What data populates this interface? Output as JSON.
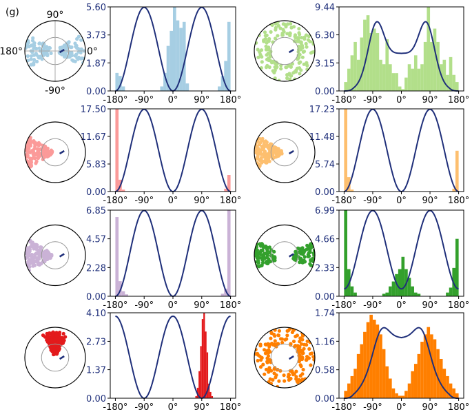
{
  "figure_label": "(g)",
  "polar_labels": {
    "top": "90°",
    "left": "180°",
    "right": "0°",
    "bottom": "-90°"
  },
  "colors": {
    "curve": "#1f2f7a",
    "axis_tick": "#1f2f7a",
    "circle_ref": "#999999"
  },
  "chart_data": [
    {
      "type": "bar",
      "panel": "row1-left",
      "color": "#a6cee3",
      "x_ticks": [
        "-180°",
        "-90°",
        "0°",
        "90°",
        "180°"
      ],
      "y_ticks": [
        "0.00",
        "1.87",
        "3.73",
        "5.60"
      ],
      "ylim": [
        0,
        5.6
      ],
      "curve": "two-peak",
      "curve_peaks_x": [
        -90,
        90
      ],
      "curve_dips_x": [
        0,
        180,
        -180
      ],
      "curve_min": 0.0,
      "hist": [
        [
          -180,
          1.2
        ],
        [
          -170,
          1.0
        ],
        [
          -160,
          0.3
        ],
        [
          -150,
          0.0
        ],
        [
          -140,
          0.0
        ],
        [
          -130,
          0.0
        ],
        [
          -120,
          0.0
        ],
        [
          -110,
          0.0
        ],
        [
          -100,
          0.0
        ],
        [
          -90,
          0.0
        ],
        [
          -80,
          0.0
        ],
        [
          -70,
          0.0
        ],
        [
          -60,
          0.0
        ],
        [
          -50,
          0.0
        ],
        [
          -40,
          0.3
        ],
        [
          -30,
          1.2
        ],
        [
          -20,
          3.0
        ],
        [
          -10,
          4.0
        ],
        [
          0,
          5.6
        ],
        [
          10,
          4.7
        ],
        [
          20,
          4.2
        ],
        [
          30,
          4.6
        ],
        [
          40,
          0.5
        ],
        [
          50,
          0.0
        ],
        [
          60,
          0.0
        ],
        [
          70,
          0.0
        ],
        [
          80,
          0.0
        ],
        [
          90,
          0.0
        ],
        [
          100,
          0.0
        ],
        [
          110,
          0.0
        ],
        [
          120,
          0.0
        ],
        [
          130,
          0.0
        ],
        [
          140,
          0.3
        ],
        [
          150,
          1.0
        ],
        [
          160,
          2.0
        ],
        [
          170,
          4.6
        ]
      ]
    },
    {
      "type": "bar",
      "panel": "row1-right",
      "color": "#b2df8a",
      "x_ticks": [
        "-180°",
        "-90°",
        "0°",
        "90°",
        "180°"
      ],
      "y_ticks": [
        "0.00",
        "3.15",
        "6.30",
        "9.44"
      ],
      "ylim": [
        0,
        9.44
      ],
      "curve": "two-peak-high-min",
      "curve_peaks_x": [
        -80,
        80
      ],
      "curve_dips_x": [
        0,
        180,
        -180
      ],
      "curve_min": 4.2,
      "hist": [
        [
          -180,
          1.0
        ],
        [
          -170,
          2.5
        ],
        [
          -160,
          4.0
        ],
        [
          -150,
          5.5
        ],
        [
          -140,
          3.5
        ],
        [
          -130,
          6.0
        ],
        [
          -120,
          8.0
        ],
        [
          -110,
          8.5
        ],
        [
          -100,
          6.5
        ],
        [
          -90,
          7.0
        ],
        [
          -80,
          6.5
        ],
        [
          -70,
          3.5
        ],
        [
          -60,
          3.0
        ],
        [
          -50,
          5.8
        ],
        [
          -40,
          3.0
        ],
        [
          -30,
          2.0
        ],
        [
          -20,
          2.0
        ],
        [
          -10,
          0.5
        ],
        [
          0,
          0.2
        ],
        [
          10,
          1.5
        ],
        [
          20,
          3.0
        ],
        [
          30,
          2.5
        ],
        [
          40,
          4.0
        ],
        [
          50,
          2.5
        ],
        [
          60,
          3.0
        ],
        [
          70,
          5.5
        ],
        [
          80,
          9.44
        ],
        [
          90,
          5.5
        ],
        [
          100,
          7.0
        ],
        [
          110,
          5.5
        ],
        [
          120,
          3.0
        ],
        [
          130,
          3.5
        ],
        [
          140,
          1.8
        ],
        [
          150,
          3.8
        ],
        [
          160,
          1.8
        ],
        [
          170,
          1.0
        ]
      ]
    },
    {
      "type": "bar",
      "panel": "row2-left",
      "color": "#fb9a99",
      "x_ticks": [
        "-180°",
        "-90°",
        "0°",
        "90°",
        "180°"
      ],
      "y_ticks": [
        "0.00",
        "5.83",
        "11.67",
        "17.50"
      ],
      "ylim": [
        0,
        17.5
      ],
      "curve": "two-peak",
      "curve_peaks_x": [
        -90,
        90
      ],
      "curve_dips_x": [
        0,
        180,
        -180
      ],
      "curve_min": 0.0,
      "hist": [
        [
          -180,
          17.5
        ],
        [
          -170,
          2.5
        ],
        [
          -160,
          0.4
        ],
        [
          160,
          0.6
        ],
        [
          170,
          3.5
        ]
      ]
    },
    {
      "type": "bar",
      "panel": "row2-right",
      "color": "#fdbf6f",
      "x_ticks": [
        "-180°",
        "-90°",
        "0°",
        "90°",
        "180°"
      ],
      "y_ticks": [
        "0.00",
        "5.74",
        "11.48",
        "17.23"
      ],
      "ylim": [
        0,
        17.23
      ],
      "curve": "two-peak",
      "curve_peaks_x": [
        -90,
        90
      ],
      "curve_dips_x": [
        0,
        180,
        -180
      ],
      "curve_min": 0.0,
      "hist": [
        [
          -180,
          17.23
        ],
        [
          -170,
          3.0
        ],
        [
          -160,
          0.4
        ],
        [
          160,
          0.6
        ],
        [
          170,
          8.5
        ]
      ]
    },
    {
      "type": "bar",
      "panel": "row3-left",
      "color": "#cab2d6",
      "x_ticks": [
        "-180°",
        "-90°",
        "0°",
        "90°",
        "180°"
      ],
      "y_ticks": [
        "0.00",
        "2.28",
        "4.57",
        "6.85"
      ],
      "ylim": [
        0,
        6.85
      ],
      "curve": "two-peak",
      "curve_peaks_x": [
        -90,
        90
      ],
      "curve_dips_x": [
        0,
        180,
        -180
      ],
      "curve_min": 0.0,
      "hist": [
        [
          -180,
          6.3
        ],
        [
          -170,
          1.2
        ],
        [
          -160,
          0.4
        ],
        [
          -150,
          0.15
        ],
        [
          150,
          0.2
        ],
        [
          160,
          0.6
        ],
        [
          170,
          6.85
        ]
      ]
    },
    {
      "type": "bar",
      "panel": "row3-right",
      "color": "#33a02c",
      "x_ticks": [
        "-180°",
        "-90°",
        "0°",
        "90°",
        "180°"
      ],
      "y_ticks": [
        "0.00",
        "2.33",
        "4.66",
        "6.99"
      ],
      "ylim": [
        0,
        6.99
      ],
      "curve": "two-peak-low-min",
      "curve_peaks_x": [
        -90,
        90
      ],
      "curve_dips_x": [
        0,
        180,
        -180
      ],
      "curve_min": 0.6,
      "hist": [
        [
          -180,
          6.99
        ],
        [
          -170,
          2.2
        ],
        [
          -160,
          0.8
        ],
        [
          -150,
          0.3
        ],
        [
          -140,
          0.0
        ],
        [
          -60,
          0.2
        ],
        [
          -50,
          0.3
        ],
        [
          -40,
          0.8
        ],
        [
          -30,
          1.2
        ],
        [
          -20,
          1.8
        ],
        [
          -10,
          2.2
        ],
        [
          0,
          3.2
        ],
        [
          10,
          2.2
        ],
        [
          20,
          1.5
        ],
        [
          30,
          0.8
        ],
        [
          40,
          0.3
        ],
        [
          50,
          0.2
        ],
        [
          140,
          0.3
        ],
        [
          150,
          0.7
        ],
        [
          160,
          2.3
        ],
        [
          170,
          4.66
        ]
      ]
    },
    {
      "type": "bar",
      "panel": "row4-left",
      "color": "#e31a1c",
      "x_ticks": [
        "-180°",
        "-90°",
        "0°",
        "90°",
        "180°"
      ],
      "y_ticks": [
        "0.00",
        "1.37",
        "2.73",
        "4.10"
      ],
      "ylim": [
        0,
        4.1
      ],
      "curve": "shifted-two-peak",
      "curve_peaks_x": [
        0,
        180,
        -180
      ],
      "curve_dips_x": [
        -90,
        90
      ],
      "curve_min": 0.0,
      "hist": [
        [
          70,
          0.1
        ],
        [
          75,
          0.5
        ],
        [
          80,
          1.3
        ],
        [
          85,
          2.5
        ],
        [
          90,
          3.8
        ],
        [
          95,
          4.1
        ],
        [
          100,
          3.2
        ],
        [
          105,
          2.2
        ],
        [
          110,
          0.7
        ],
        [
          115,
          0.3
        ],
        [
          120,
          0.1
        ]
      ]
    },
    {
      "type": "bar",
      "panel": "row4-right",
      "color": "#ff7f00",
      "x_ticks": [
        "-180°",
        "-90°",
        "0°",
        "90°",
        "180°"
      ],
      "y_ticks": [
        "0.00",
        "0.58",
        "1.16",
        "1.74"
      ],
      "ylim": [
        0,
        1.74
      ],
      "curve": "two-peak-high-min",
      "curve_peaks_x": [
        -65,
        65
      ],
      "curve_dips_x": [
        0,
        180,
        -180
      ],
      "curve_min": 1.22,
      "hist": [
        [
          -180,
          0.15
        ],
        [
          -170,
          0.3
        ],
        [
          -160,
          0.45
        ],
        [
          -150,
          0.6
        ],
        [
          -140,
          0.9
        ],
        [
          -130,
          1.1
        ],
        [
          -120,
          1.35
        ],
        [
          -110,
          1.55
        ],
        [
          -100,
          1.7
        ],
        [
          -90,
          1.6
        ],
        [
          -80,
          1.5
        ],
        [
          -70,
          1.3
        ],
        [
          -60,
          1.0
        ],
        [
          -50,
          0.65
        ],
        [
          -40,
          0.4
        ],
        [
          -30,
          0.2
        ],
        [
          -20,
          0.1
        ],
        [
          -10,
          0.05
        ],
        [
          0,
          0.05
        ],
        [
          10,
          0.15
        ],
        [
          20,
          0.3
        ],
        [
          30,
          0.55
        ],
        [
          40,
          0.7
        ],
        [
          50,
          0.9
        ],
        [
          60,
          1.15
        ],
        [
          70,
          1.3
        ],
        [
          80,
          1.45
        ],
        [
          90,
          1.3
        ],
        [
          100,
          1.2
        ],
        [
          110,
          1.0
        ],
        [
          120,
          0.8
        ],
        [
          130,
          0.6
        ],
        [
          140,
          0.45
        ],
        [
          150,
          0.3
        ],
        [
          160,
          0.2
        ],
        [
          170,
          0.1
        ]
      ]
    }
  ]
}
